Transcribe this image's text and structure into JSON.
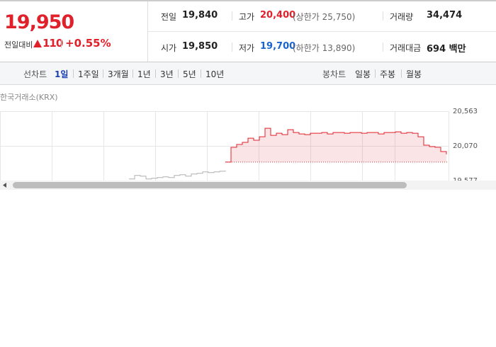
{
  "quote": {
    "price": "19,950",
    "change_label": "전일대비",
    "change": "110",
    "change_rate": "+0.55%"
  },
  "summary": [
    {
      "label": "전일",
      "value": "19,840"
    },
    {
      "label": "고가",
      "value": "20,400",
      "note": "(상한가 25,750)"
    },
    {
      "label": "거래량",
      "value": "34,474"
    },
    {
      "label": "시가",
      "value": "19,850"
    },
    {
      "label": "저가",
      "value": "19,700",
      "note": "(하한가 13,890)"
    },
    {
      "label": "거래대금",
      "value": "694 백만"
    }
  ],
  "toolbar": {
    "line_chart": "선차트",
    "periods": [
      "1일",
      "1주일",
      "3개월",
      "1년",
      "3년",
      "5년",
      "10년"
    ],
    "candle_chart": "봉차트",
    "candle_periods": [
      "일봉",
      "주봉",
      "월봉"
    ]
  },
  "chart": {
    "source": "한국거래소(KRX)",
    "ylim": [
      19577,
      20563
    ],
    "yticks": [
      {
        "value": 20563,
        "label": "20,563"
      },
      {
        "value": 20070,
        "label": "20,070"
      },
      {
        "value": 19577,
        "label": "19,577"
      }
    ],
    "base": 19840,
    "series": [
      {
        "color": "#b0b0b0",
        "values": [
          19600,
          19650,
          19640,
          19600,
          19610,
          19620,
          19630,
          19620,
          19650,
          19660,
          19640,
          19670,
          19680,
          19700,
          19690,
          19700,
          19710,
          19720,
          null,
          null,
          null,
          null,
          null,
          null,
          null,
          null,
          null,
          null,
          null,
          null,
          null,
          null,
          null,
          null,
          null,
          null,
          null,
          null,
          null,
          null,
          null,
          null,
          null,
          null,
          null,
          null,
          null,
          null,
          null,
          null,
          null,
          null,
          null,
          null,
          null,
          null,
          null
        ]
      },
      {
        "color": "#e0202a",
        "values": [
          null,
          null,
          null,
          null,
          null,
          null,
          null,
          null,
          null,
          null,
          null,
          null,
          null,
          null,
          null,
          null,
          null,
          19840,
          20050,
          20090,
          20120,
          20180,
          20150,
          20200,
          20320,
          20220,
          20250,
          20230,
          20300,
          20260,
          20240,
          20230,
          20250,
          20250,
          20260,
          20240,
          20260,
          20260,
          20250,
          20260,
          20260,
          20250,
          20260,
          20260,
          20240,
          20260,
          20260,
          20270,
          20250,
          20260,
          20250,
          20200,
          20080,
          20060,
          20050,
          19990,
          19950
        ]
      }
    ]
  }
}
